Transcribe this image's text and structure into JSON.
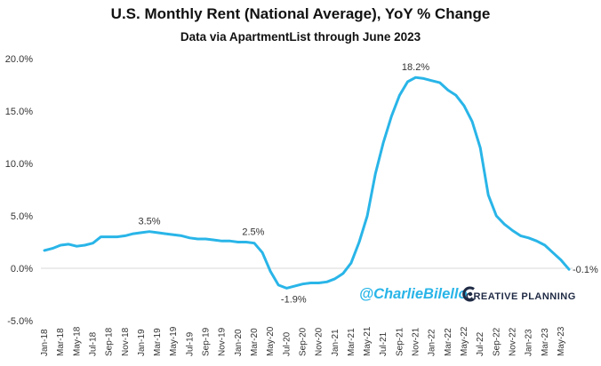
{
  "chart_data": {
    "type": "line",
    "title": "U.S. Monthly Rent (National Average), YoY % Change",
    "subtitle": "Data via ApartmentList through June 2023",
    "xlabel": "",
    "ylabel": "",
    "ylim": [
      -5,
      20
    ],
    "yticks": [
      "-5.0%",
      "0.0%",
      "5.0%",
      "10.0%",
      "15.0%",
      "20.0%"
    ],
    "grid": false,
    "line_color": "#29b5e8",
    "x_tick_labels": [
      "Jan-18",
      "Mar-18",
      "May-18",
      "Jul-18",
      "Sep-18",
      "Nov-18",
      "Jan-19",
      "Mar-19",
      "May-19",
      "Jul-19",
      "Sep-19",
      "Nov-19",
      "Jan-20",
      "Mar-20",
      "May-20",
      "Jul-20",
      "Sep-20",
      "Nov-20",
      "Jan-21",
      "Mar-21",
      "May-21",
      "Jul-21",
      "Sep-21",
      "Nov-21",
      "Jan-22",
      "Mar-22",
      "May-22",
      "Jul-22",
      "Sep-22",
      "Nov-22",
      "Jan-23",
      "Mar-23",
      "May-23"
    ],
    "x": [
      "Jan-18",
      "Feb-18",
      "Mar-18",
      "Apr-18",
      "May-18",
      "Jun-18",
      "Jul-18",
      "Aug-18",
      "Sep-18",
      "Oct-18",
      "Nov-18",
      "Dec-18",
      "Jan-19",
      "Feb-19",
      "Mar-19",
      "Apr-19",
      "May-19",
      "Jun-19",
      "Jul-19",
      "Aug-19",
      "Sep-19",
      "Oct-19",
      "Nov-19",
      "Dec-19",
      "Jan-20",
      "Feb-20",
      "Mar-20",
      "Apr-20",
      "May-20",
      "Jun-20",
      "Jul-20",
      "Aug-20",
      "Sep-20",
      "Oct-20",
      "Nov-20",
      "Dec-20",
      "Jan-21",
      "Feb-21",
      "Mar-21",
      "Apr-21",
      "May-21",
      "Jun-21",
      "Jul-21",
      "Aug-21",
      "Sep-21",
      "Oct-21",
      "Nov-21",
      "Dec-21",
      "Jan-22",
      "Feb-22",
      "Mar-22",
      "Apr-22",
      "May-22",
      "Jun-22",
      "Jul-22",
      "Aug-22",
      "Sep-22",
      "Oct-22",
      "Nov-22",
      "Dec-22",
      "Jan-23",
      "Feb-23",
      "Mar-23",
      "Apr-23",
      "May-23",
      "Jun-23"
    ],
    "series": [
      {
        "values": [
          1.7,
          1.9,
          2.2,
          2.3,
          2.1,
          2.2,
          2.4,
          3.0,
          3.0,
          3.0,
          3.1,
          3.3,
          3.4,
          3.5,
          3.4,
          3.3,
          3.2,
          3.1,
          2.9,
          2.8,
          2.8,
          2.7,
          2.6,
          2.6,
          2.5,
          2.5,
          2.4,
          1.5,
          -0.3,
          -1.6,
          -1.9,
          -1.7,
          -1.5,
          -1.4,
          -1.4,
          -1.3,
          -1.0,
          -0.5,
          0.5,
          2.5,
          5.0,
          9.0,
          12.0,
          14.5,
          16.5,
          17.8,
          18.2,
          18.1,
          17.9,
          17.7,
          17.0,
          16.5,
          15.5,
          14.0,
          11.5,
          7.0,
          5.0,
          4.2,
          3.6,
          3.1,
          2.9,
          2.6,
          2.2,
          1.5,
          0.8,
          -0.1
        ]
      }
    ],
    "annotations": [
      {
        "label": "3.5%",
        "x": "Feb-19",
        "y": 3.5
      },
      {
        "label": "2.5%",
        "x": "Feb-20",
        "y": 2.5
      },
      {
        "label": "-1.9%",
        "x": "Jul-20",
        "y": -1.9
      },
      {
        "label": "18.2%",
        "x": "Nov-21",
        "y": 18.2
      },
      {
        "label": "-0.1%",
        "x": "Jun-23",
        "y": -0.1
      }
    ]
  },
  "watermark": {
    "handle": "@CharlieBilello",
    "brand": "CREATIVE PLANNING"
  }
}
